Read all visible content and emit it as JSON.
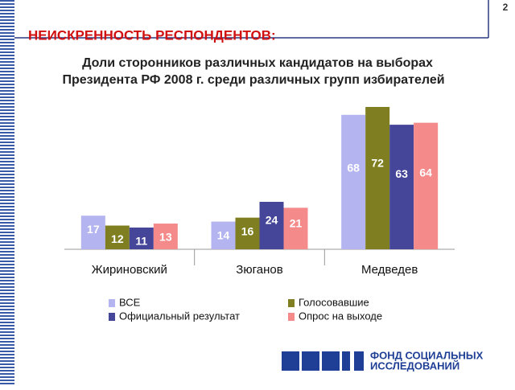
{
  "page_number": "2",
  "heading": "НЕИСКРЕННОСТЬ РЕСПОНДЕНТОВ:",
  "logo": [
    "ФОНД СОЦИАЛЬНЫХ",
    "ИССЛЕДОВАНИЙ"
  ],
  "chart_data": {
    "type": "bar",
    "subtitle": [
      "Доли сторонников различных кандидатов на выборах",
      "Президента РФ 2008 г. среди различных групп избирателей"
    ],
    "categories": [
      "Жириновский",
      "Зюганов",
      "Медведев"
    ],
    "series": [
      {
        "name": "ВСЕ",
        "color": "#b4b4f0",
        "values": [
          17,
          14,
          68
        ]
      },
      {
        "name": "Голосовавшие",
        "color": "#7f7f22",
        "values": [
          12,
          16,
          72
        ]
      },
      {
        "name": "Официальный результат",
        "color": "#45459a",
        "values": [
          11,
          24,
          63
        ]
      },
      {
        "name": "Опрос на выходе",
        "color": "#f48a8a",
        "values": [
          13,
          21,
          64
        ]
      }
    ]
  }
}
